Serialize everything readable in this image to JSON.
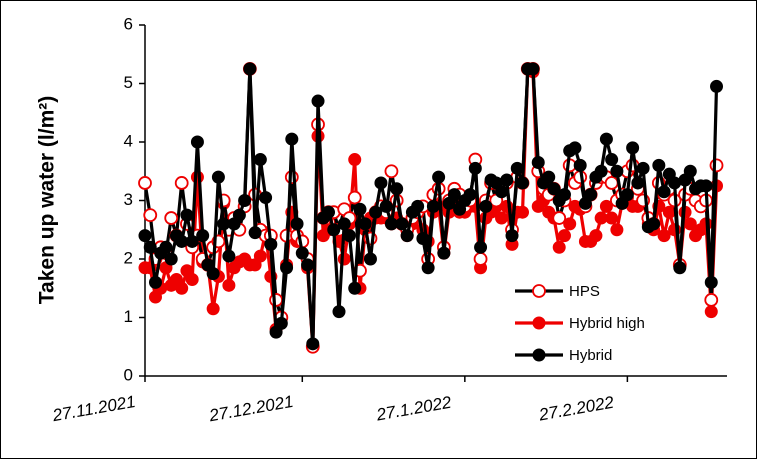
{
  "chart_data": {
    "type": "line",
    "ylabel": "Taken up water (l/m²)",
    "x": [
      "2021-11-27",
      "2021-11-28",
      "2021-11-29",
      "2021-11-30",
      "2021-12-01",
      "2021-12-02",
      "2021-12-03",
      "2021-12-04",
      "2021-12-05",
      "2021-12-06",
      "2021-12-07",
      "2021-12-08",
      "2021-12-09",
      "2021-12-10",
      "2021-12-11",
      "2021-12-12",
      "2021-12-13",
      "2021-12-14",
      "2021-12-15",
      "2021-12-16",
      "2021-12-17",
      "2021-12-18",
      "2021-12-19",
      "2021-12-20",
      "2021-12-21",
      "2021-12-22",
      "2021-12-23",
      "2021-12-24",
      "2021-12-25",
      "2021-12-26",
      "2021-12-27",
      "2021-12-28",
      "2021-12-29",
      "2021-12-30",
      "2021-12-31",
      "2022-01-01",
      "2022-01-02",
      "2022-01-03",
      "2022-01-04",
      "2022-01-05",
      "2022-01-06",
      "2022-01-07",
      "2022-01-08",
      "2022-01-09",
      "2022-01-10",
      "2022-01-11",
      "2022-01-12",
      "2022-01-13",
      "2022-01-14",
      "2022-01-15",
      "2022-01-16",
      "2022-01-17",
      "2022-01-18",
      "2022-01-19",
      "2022-01-20",
      "2022-01-21",
      "2022-01-22",
      "2022-01-23",
      "2022-01-24",
      "2022-01-25",
      "2022-01-26",
      "2022-01-27",
      "2022-01-28",
      "2022-01-29",
      "2022-01-30",
      "2022-01-31",
      "2022-02-01",
      "2022-02-02",
      "2022-02-03",
      "2022-02-04",
      "2022-02-05",
      "2022-02-06",
      "2022-02-07",
      "2022-02-08",
      "2022-02-09",
      "2022-02-10",
      "2022-02-11",
      "2022-02-12",
      "2022-02-13",
      "2022-02-14",
      "2022-02-15",
      "2022-02-16",
      "2022-02-17",
      "2022-02-18",
      "2022-02-19",
      "2022-02-20",
      "2022-02-21",
      "2022-02-22",
      "2022-02-23",
      "2022-02-24",
      "2022-02-25",
      "2022-02-26",
      "2022-02-27",
      "2022-02-28",
      "2022-03-01",
      "2022-03-02",
      "2022-03-03",
      "2022-03-04",
      "2022-03-05",
      "2022-03-06",
      "2022-03-07",
      "2022-03-08",
      "2022-03-09",
      "2022-03-10",
      "2022-03-11",
      "2022-03-12",
      "2022-03-13",
      "2022-03-14",
      "2022-03-15",
      "2022-03-16"
    ],
    "series": [
      {
        "name": "Hybrid high",
        "color": "#ee0000",
        "line_color": "#ee0000",
        "marker": "filled",
        "values": [
          1.85,
          1.85,
          1.35,
          1.5,
          1.85,
          1.55,
          1.65,
          1.5,
          1.8,
          1.65,
          3.4,
          1.95,
          1.9,
          1.15,
          1.7,
          2.95,
          1.55,
          1.85,
          1.95,
          2.0,
          1.9,
          1.9,
          2.05,
          2.45,
          1.7,
          0.8,
          1.0,
          1.9,
          2.8,
          2.3,
          2.3,
          1.85,
          0.5,
          4.1,
          2.4,
          2.5,
          2.8,
          2.3,
          2.0,
          2.6,
          3.7,
          1.5,
          2.5,
          2.7,
          2.7,
          2.7,
          2.7,
          2.6,
          2.7,
          2.6,
          2.4,
          2.6,
          2.8,
          2.5,
          2.3,
          2.8,
          2.9,
          2.1,
          2.8,
          2.9,
          2.8,
          2.8,
          2.9,
          2.9,
          1.85,
          2.7,
          2.8,
          2.9,
          2.7,
          2.9,
          2.25,
          2.8,
          2.8,
          5.25,
          5.2,
          2.9,
          3.0,
          2.8,
          2.7,
          2.2,
          2.4,
          2.6,
          2.9,
          2.85,
          2.3,
          2.3,
          2.4,
          2.7,
          2.9,
          2.7,
          2.5,
          2.95,
          3.05,
          2.9,
          2.9,
          3.0,
          2.6,
          2.5,
          2.9,
          2.4,
          2.8,
          2.5,
          1.9,
          2.8,
          2.6,
          2.4,
          2.5,
          2.6,
          1.1,
          3.25
        ]
      },
      {
        "name": "HPS",
        "color": "#ee0000",
        "line_color": "#000000",
        "marker": "hollow",
        "values": [
          3.3,
          2.75,
          2.0,
          2.2,
          2.1,
          2.7,
          2.4,
          3.3,
          2.6,
          2.2,
          2.4,
          2.0,
          1.9,
          2.2,
          2.3,
          3.0,
          2.5,
          2.7,
          2.5,
          2.9,
          5.25,
          3.1,
          2.5,
          2.4,
          2.4,
          1.3,
          1.0,
          2.4,
          3.4,
          2.4,
          2.3,
          2.0,
          0.5,
          4.3,
          2.7,
          2.8,
          2.8,
          2.5,
          2.85,
          2.7,
          3.05,
          1.8,
          2.6,
          2.35,
          2.8,
          2.9,
          2.8,
          3.5,
          3.0,
          2.6,
          2.5,
          2.7,
          2.8,
          2.9,
          2.0,
          3.1,
          3.2,
          2.2,
          3.0,
          3.2,
          3.1,
          2.9,
          3.0,
          3.7,
          2.0,
          3.0,
          3.3,
          3.0,
          3.2,
          3.3,
          2.5,
          3.4,
          3.3,
          5.25,
          5.25,
          3.5,
          3.2,
          3.1,
          3.2,
          2.7,
          3.0,
          3.6,
          3.3,
          3.4,
          2.9,
          3.1,
          3.3,
          3.4,
          3.4,
          3.3,
          3.0,
          3.1,
          3.5,
          3.6,
          3.2,
          3.0,
          2.7,
          2.6,
          3.3,
          3.1,
          3.2,
          3.0,
          1.9,
          3.1,
          3.2,
          3.0,
          2.9,
          3.0,
          1.3,
          3.6
        ]
      },
      {
        "name": "Hybrid",
        "color": "#000000",
        "line_color": "#000000",
        "marker": "filled",
        "values": [
          2.4,
          2.2,
          1.6,
          2.1,
          2.2,
          2.0,
          2.4,
          2.3,
          2.75,
          2.3,
          4.0,
          2.4,
          1.9,
          1.75,
          3.4,
          2.6,
          2.05,
          2.6,
          2.75,
          3.0,
          5.25,
          2.45,
          3.7,
          3.05,
          2.25,
          0.75,
          0.9,
          1.85,
          4.05,
          2.6,
          2.1,
          1.9,
          0.55,
          4.7,
          2.7,
          2.8,
          2.5,
          1.1,
          2.6,
          2.4,
          1.5,
          2.85,
          2.6,
          2.0,
          2.8,
          3.3,
          2.9,
          2.6,
          3.2,
          2.6,
          2.4,
          2.8,
          2.9,
          2.35,
          1.85,
          2.9,
          3.4,
          2.1,
          2.95,
          3.1,
          2.85,
          3.0,
          3.1,
          3.55,
          2.2,
          2.9,
          3.35,
          3.3,
          3.15,
          3.35,
          2.4,
          3.55,
          3.3,
          5.25,
          5.25,
          3.65,
          3.3,
          3.4,
          3.2,
          3.0,
          3.1,
          3.85,
          3.9,
          3.6,
          2.95,
          3.1,
          3.4,
          3.5,
          4.05,
          3.7,
          3.5,
          2.95,
          3.1,
          3.9,
          3.3,
          3.55,
          2.55,
          2.6,
          3.6,
          3.15,
          3.45,
          3.3,
          1.85,
          3.35,
          3.5,
          3.2,
          3.25,
          3.25,
          1.6,
          4.95
        ]
      }
    ],
    "legend_order": [
      "HPS",
      "Hybrid high",
      "Hybrid"
    ],
    "xlim": [
      "2021-11-27",
      "2022-03-18"
    ],
    "xticks": [
      {
        "value": "2021-11-27",
        "label": "27.11.2021"
      },
      {
        "value": "2021-12-27",
        "label": "27.12.2021"
      },
      {
        "value": "2022-01-27",
        "label": "27.1.2022"
      },
      {
        "value": "2022-02-27",
        "label": "27.2.2022"
      }
    ],
    "ylim": [
      0,
      6
    ],
    "yticks": [
      0,
      1,
      2,
      3,
      4,
      5,
      6
    ],
    "grid": false,
    "legend": "lower right"
  }
}
